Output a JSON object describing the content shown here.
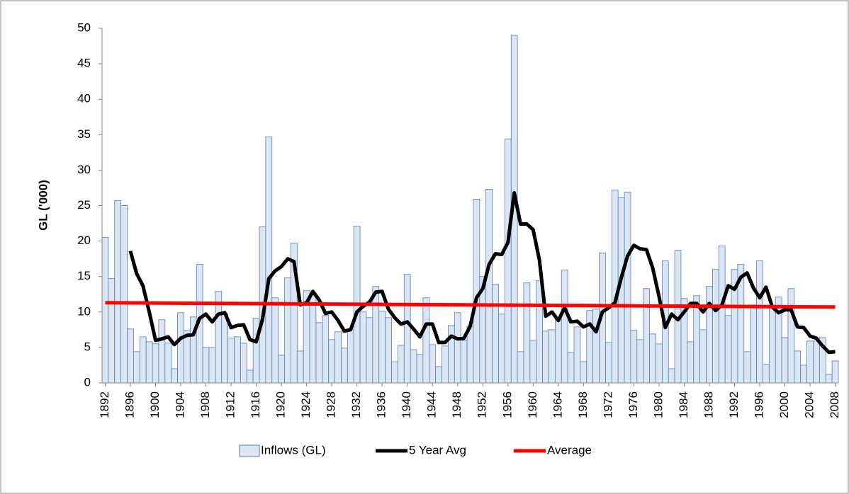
{
  "chart_data": {
    "type": "bar",
    "ylabel": "GL ('000)",
    "x": [
      1892,
      1893,
      1894,
      1895,
      1896,
      1897,
      1898,
      1899,
      1900,
      1901,
      1902,
      1903,
      1904,
      1905,
      1906,
      1907,
      1908,
      1909,
      1910,
      1911,
      1912,
      1913,
      1914,
      1915,
      1916,
      1917,
      1918,
      1919,
      1920,
      1921,
      1922,
      1923,
      1924,
      1925,
      1926,
      1927,
      1928,
      1929,
      1930,
      1931,
      1932,
      1933,
      1934,
      1935,
      1936,
      1937,
      1938,
      1939,
      1940,
      1941,
      1942,
      1943,
      1944,
      1945,
      1946,
      1947,
      1948,
      1949,
      1950,
      1951,
      1952,
      1953,
      1954,
      1955,
      1956,
      1957,
      1958,
      1959,
      1960,
      1961,
      1962,
      1963,
      1964,
      1965,
      1966,
      1967,
      1968,
      1969,
      1970,
      1971,
      1972,
      1973,
      1974,
      1975,
      1976,
      1977,
      1978,
      1979,
      1980,
      1981,
      1982,
      1983,
      1984,
      1985,
      1986,
      1987,
      1988,
      1989,
      1990,
      1991,
      1992,
      1993,
      1994,
      1995,
      1996,
      1997,
      1998,
      1999,
      2000,
      2001,
      2002,
      2003,
      2004,
      2005,
      2006,
      2007,
      2008
    ],
    "xlim": [
      1891.5,
      2008.5
    ],
    "xticks": [
      1892,
      1896,
      1900,
      1904,
      1908,
      1912,
      1916,
      1920,
      1924,
      1928,
      1932,
      1936,
      1940,
      1944,
      1948,
      1952,
      1956,
      1960,
      1964,
      1968,
      1972,
      1976,
      1980,
      1984,
      1988,
      1992,
      1996,
      2000,
      2004,
      2008
    ],
    "ylim": [
      0,
      50
    ],
    "yticks": [
      0,
      5,
      10,
      15,
      20,
      25,
      30,
      35,
      40,
      45,
      50
    ],
    "grid": false,
    "legend": "bottom",
    "series": [
      {
        "name": "Inflows (GL)",
        "type": "bar",
        "color": "#dce6f2",
        "edge": "#4f81bd",
        "values": [
          20.5,
          14.7,
          25.7,
          25,
          7.6,
          4.4,
          6.5,
          5.8,
          5.5,
          8.9,
          5.6,
          2,
          9.9,
          7.4,
          9.3,
          16.7,
          5,
          5,
          12.9,
          9.8,
          6.3,
          6.5,
          5.6,
          1.8,
          9.1,
          22,
          34.7,
          12,
          3.9,
          14.8,
          19.7,
          4.5,
          13,
          12.5,
          8.5,
          9.5,
          6.1,
          7.2,
          4.9,
          7.5,
          22.1,
          10,
          9.2,
          13.6,
          10.1,
          9.2,
          3,
          5.3,
          15.3,
          4.7,
          4,
          12,
          5.4,
          2.3,
          5.2,
          8.1,
          9.9,
          6,
          8,
          25.9,
          15,
          27.3,
          13.9,
          9.7,
          34.4,
          49,
          4.4,
          14.1,
          6,
          14.4,
          7.3,
          7.5,
          8.9,
          15.9,
          4.3,
          7.9,
          3,
          10.2,
          10.4,
          18.3,
          5.7,
          27.2,
          26.1,
          26.9,
          7.4,
          6.1,
          13.3,
          6.9,
          5.5,
          17.2,
          2,
          18.7,
          11.9,
          5.8,
          12.3,
          7.5,
          13.6,
          16,
          19.3,
          9.5,
          16,
          16.7,
          4.4,
          11,
          17.2,
          2.6,
          10.6,
          12.1,
          6.4,
          13.3,
          4.5,
          2.5,
          5.9,
          5.9,
          6.4,
          1.2,
          3.1
        ]
      },
      {
        "name": "5 Year Avg",
        "type": "line",
        "color": "#000000",
        "values": [
          null,
          null,
          null,
          null,
          18.6,
          15.4,
          13.7,
          10,
          6,
          6.2,
          6.5,
          5.4,
          6.3,
          6.7,
          6.8,
          9.1,
          9.7,
          8.6,
          9.7,
          9.9,
          7.8,
          8.1,
          8.2,
          6.1,
          5.8,
          9,
          14.7,
          15.8,
          16.4,
          17.5,
          17.1,
          11,
          11.3,
          12.9,
          11.7,
          9.8,
          10,
          8.8,
          7.3,
          7.5,
          10,
          10.8,
          11.4,
          12.8,
          12.9,
          10.4,
          9.2,
          8.3,
          8.6,
          7.6,
          6.5,
          8.3,
          8.3,
          5.7,
          5.7,
          6.6,
          6.2,
          6.3,
          8,
          12,
          13.3,
          16.7,
          18.2,
          18.1,
          19.8,
          26.8,
          22.4,
          22.4,
          21.6,
          17.3,
          9.4,
          10,
          8.8,
          10.6,
          8.6,
          8.7,
          7.9,
          8.3,
          7.2,
          10,
          10.6,
          11.3,
          14.8,
          17.9,
          19.4,
          18.9,
          18.8,
          16.2,
          12.2,
          7.8,
          9.7,
          8.9,
          10,
          11.2,
          11.2,
          10,
          11.2,
          10.2,
          11,
          13.7,
          13.2,
          14.9,
          15.5,
          13.4,
          12,
          13.5,
          10.7,
          9.9,
          10.3,
          10.3,
          7.9,
          7.8,
          6.6,
          6.3,
          5.2,
          4.3,
          4.4
        ]
      },
      {
        "name": "Average",
        "type": "line",
        "color": "#ff0000",
        "x": [
          1892,
          2008
        ],
        "values": [
          11.3,
          10.7
        ]
      }
    ]
  }
}
